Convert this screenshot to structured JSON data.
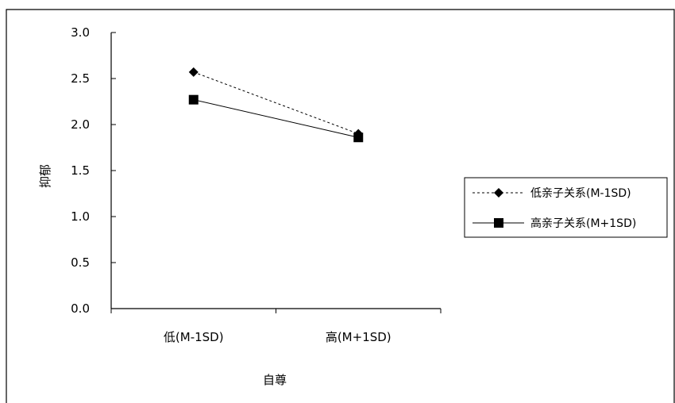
{
  "chart_data": {
    "type": "line",
    "title": "",
    "xlabel": "自尊",
    "ylabel": "抑郁",
    "categories": [
      "低(M-1SD)",
      "高(M+1SD)"
    ],
    "ylim": [
      0,
      3.0
    ],
    "yticks": [
      "0.0",
      "0.5",
      "1.0",
      "1.5",
      "2.0",
      "2.5",
      "3.0"
    ],
    "grid": false,
    "legend_position": "right",
    "series": [
      {
        "name": "低亲子关系(M-1SD)",
        "values": [
          2.57,
          1.9
        ],
        "marker": "diamond",
        "line_style": "dashed",
        "color": "#000000"
      },
      {
        "name": "高亲子关系(M+1SD)",
        "values": [
          2.27,
          1.86
        ],
        "marker": "square",
        "line_style": "solid",
        "color": "#000000"
      }
    ]
  }
}
